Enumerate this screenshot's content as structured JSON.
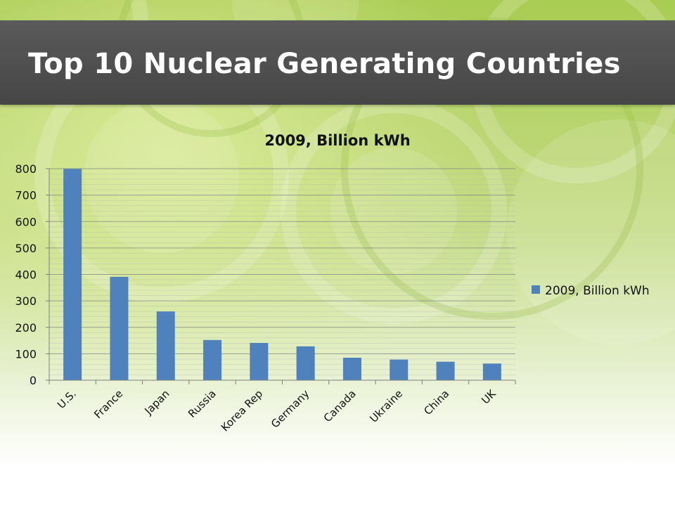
{
  "slide": {
    "title": "Top 10 Nuclear Generating Countries"
  },
  "colors": {
    "bar": "#4f81bd",
    "title_bar": "#505050",
    "background_green": "#b5d45f"
  },
  "chart_data": {
    "type": "bar",
    "title": "2009, Billion kWh",
    "categories": [
      "U.S.",
      "France",
      "Japan",
      "Russia",
      "Korea Rep",
      "Germany",
      "Canada",
      "Ukraine",
      "China",
      "UK"
    ],
    "series": [
      {
        "name": "2009, Billion kWh",
        "values": [
          799,
          391,
          260,
          152,
          141,
          128,
          85,
          78,
          70,
          63
        ]
      }
    ],
    "yticks": [
      "0",
      "100",
      "200",
      "300",
      "400",
      "500",
      "600",
      "700",
      "800"
    ],
    "ylim": [
      0,
      800
    ],
    "xlabel": "",
    "ylabel": "",
    "grid": true,
    "legend": "right",
    "xtick_rotation": "-45deg"
  }
}
